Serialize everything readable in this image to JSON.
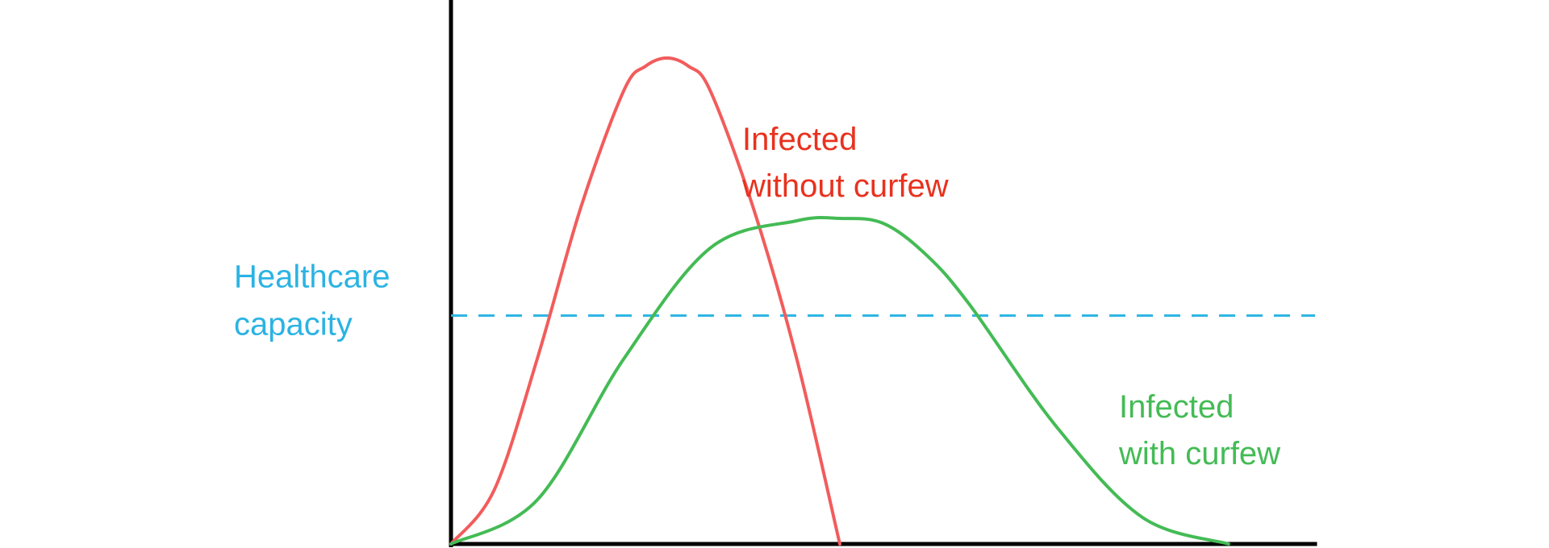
{
  "chart_data": {
    "type": "line",
    "title": "",
    "xlabel": "",
    "ylabel": "",
    "xlim": [
      0,
      100
    ],
    "ylim": [
      0,
      100
    ],
    "grid": false,
    "legend": "none",
    "series": [
      {
        "key": "without_curfew",
        "name": "Infected without curfew",
        "color": "#f25c5c",
        "label_lines": [
          "Infected",
          "without curfew"
        ],
        "label_color": "#e8321e",
        "x": [
          0,
          5,
          10,
          15,
          20,
          22.5,
          25,
          27.5,
          30,
          35,
          40,
          45
        ],
        "y": [
          0,
          11.1,
          38.2,
          69.1,
          93.3,
          98.3,
          100,
          98.3,
          93.3,
          69.1,
          38.2,
          0
        ]
      },
      {
        "key": "with_curfew",
        "name": "Infected with curfew",
        "color": "#44bb55",
        "label_lines": [
          "Infected",
          "with curfew"
        ],
        "label_color": "#44bb55",
        "x": [
          0,
          10,
          20,
          30,
          40,
          45,
          50,
          55,
          60,
          70,
          80,
          90
        ],
        "y": [
          0,
          9.1,
          38.1,
          60.9,
          66.5,
          67,
          66,
          59.5,
          49.3,
          24.3,
          5.5,
          0
        ]
      }
    ],
    "reference_lines": [
      {
        "key": "capacity",
        "orientation": "horizontal",
        "y": 47,
        "style": "dashed",
        "color": "#2bb3e3",
        "label_lines": [
          "Healthcare",
          "capacity"
        ],
        "label_color": "#2bb3e3"
      }
    ]
  }
}
